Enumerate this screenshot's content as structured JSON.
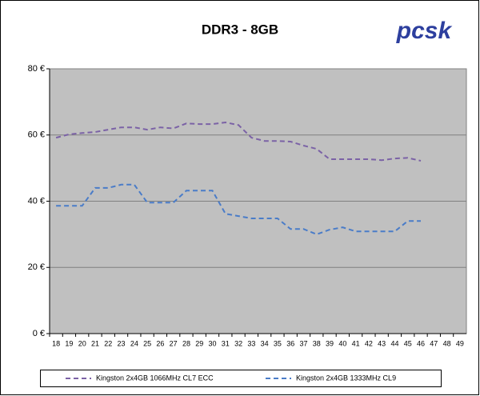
{
  "chart_data": {
    "type": "line",
    "title": "DDR3 - 8GB",
    "logo": "pcsk",
    "categories": [
      "18",
      "19",
      "20",
      "21",
      "22",
      "23",
      "24",
      "25",
      "26",
      "27",
      "28",
      "29",
      "30",
      "31",
      "32",
      "33",
      "34",
      "35",
      "36",
      "37",
      "38",
      "39",
      "40",
      "41",
      "42",
      "43",
      "44",
      "45",
      "46",
      "47",
      "48",
      "49"
    ],
    "series": [
      {
        "name": "Kingston 2x4GB 1066MHz CL7 ECC",
        "color": "#7b62a6",
        "values": [
          59.2,
          60.2,
          60.6,
          60.9,
          61.6,
          62.3,
          62.3,
          61.6,
          62.3,
          62,
          63.5,
          63.3,
          63.3,
          63.8,
          63,
          59.2,
          58.2,
          58.2,
          58,
          56.8,
          55.8,
          52.7,
          52.7,
          52.7,
          52.7,
          52.4,
          52.9,
          53.1,
          52.2,
          null,
          null,
          null
        ]
      },
      {
        "name": "Kingston 2x4GB 1333MHz CL9",
        "color": "#4a7cc8",
        "values": [
          38.6,
          38.6,
          38.6,
          44,
          44,
          45,
          45,
          39.6,
          39.6,
          39.6,
          43.2,
          43.2,
          43.2,
          36.2,
          35.5,
          34.8,
          34.8,
          34.8,
          31.6,
          31.6,
          30,
          31.4,
          32.1,
          30.9,
          30.9,
          30.9,
          30.9,
          34,
          34,
          null,
          null,
          null
        ]
      }
    ],
    "ylim": [
      0,
      80
    ],
    "yticks": [
      {
        "value": 0,
        "label": "0 €"
      },
      {
        "value": 20,
        "label": "20 €"
      },
      {
        "value": 40,
        "label": "40 €"
      },
      {
        "value": 60,
        "label": "60 €"
      },
      {
        "value": 80,
        "label": "80 €"
      }
    ],
    "grid": true,
    "legend": "bottom"
  }
}
